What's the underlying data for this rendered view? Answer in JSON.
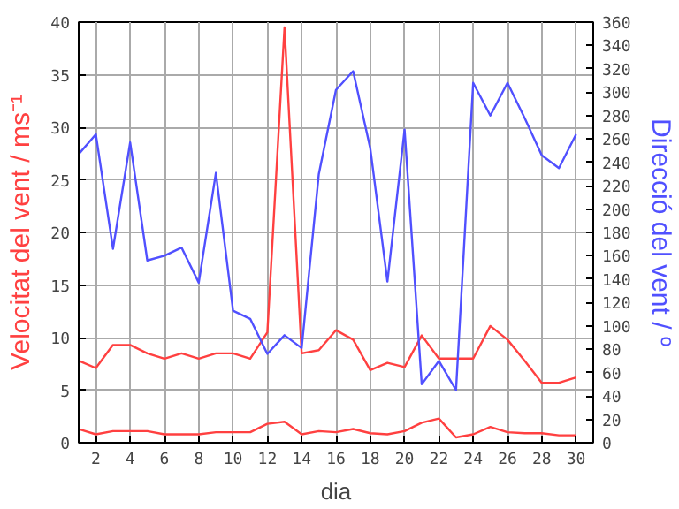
{
  "chart_data": {
    "type": "line",
    "xlabel": "dia",
    "ylabel": "Velocitat del vent / ms⁻¹",
    "y2label": "Direcció del vent / º",
    "x": [
      1,
      2,
      3,
      4,
      5,
      6,
      7,
      8,
      9,
      10,
      11,
      12,
      13,
      14,
      15,
      16,
      17,
      18,
      19,
      20,
      21,
      22,
      23,
      24,
      25,
      26,
      27,
      28,
      29,
      30
    ],
    "series": [
      {
        "color": "#ff4040",
        "values": [
          7.8,
          7.1,
          9.3,
          9.3,
          8.5,
          8.0,
          8.5,
          8.0,
          8.5,
          8.5,
          8.0,
          10.5,
          39.5,
          8.5,
          8.8,
          10.7,
          9.8,
          6.9,
          7.6,
          7.2,
          10.2,
          8.0,
          8.0,
          8.0,
          11.1,
          9.8,
          7.8,
          5.7,
          5.7,
          6.2
        ]
      },
      {
        "color": "#ff4040",
        "values": [
          1.3,
          0.8,
          1.1,
          1.1,
          1.1,
          0.8,
          0.8,
          0.8,
          1.0,
          1.0,
          1.0,
          1.8,
          2.0,
          0.8,
          1.1,
          1.0,
          1.3,
          0.9,
          0.8,
          1.1,
          1.9,
          2.3,
          0.5,
          0.8,
          1.5,
          1.0,
          0.9,
          0.9,
          0.7,
          0.7
        ]
      },
      {
        "color": "#5050ff",
        "axis": "y2",
        "values": [
          247,
          264,
          166,
          257,
          156,
          160,
          167,
          137,
          231,
          113,
          106,
          76,
          92,
          81,
          230,
          302,
          318,
          252,
          138,
          268,
          50,
          70,
          45,
          308,
          280,
          308,
          278,
          246,
          235,
          264
        ]
      }
    ],
    "xlim": [
      1,
      31
    ],
    "xticks": [
      2,
      4,
      6,
      8,
      10,
      12,
      14,
      16,
      18,
      20,
      22,
      24,
      26,
      28,
      30
    ],
    "ylim": [
      0,
      40
    ],
    "yticks": [
      0,
      5,
      10,
      15,
      20,
      25,
      30,
      35,
      40
    ],
    "y2lim": [
      0,
      360
    ],
    "y2ticks": [
      0,
      20,
      40,
      60,
      80,
      100,
      120,
      140,
      160,
      180,
      200,
      220,
      240,
      260,
      280,
      300,
      320,
      340,
      360
    ],
    "grid": true,
    "marker": "none",
    "line_style": "solid"
  }
}
